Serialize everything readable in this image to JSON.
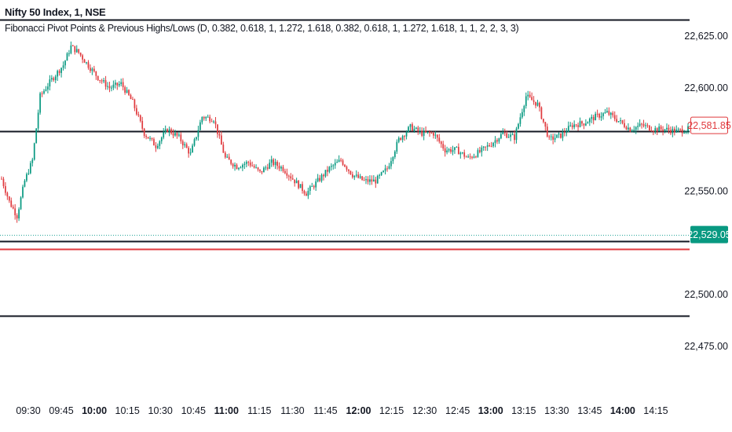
{
  "chart_data": {
    "type": "candlestick",
    "symbol_title": "Nifty 50 Index, 1, NSE",
    "indicator_title": "Fibonacci Pivot Points & Previous Highs/Lows (D, 0.382, 0.618, 1, 1.272, 1.618, 0.382, 0.618, 1, 1.272, 1.618, 1, 1, 2, 2, 3, 3)",
    "y_axis": {
      "ticks": [
        22625,
        22600,
        22550,
        22500,
        22475
      ],
      "tick_labels": [
        "22,625.00",
        "22,600.00",
        "22,550.00",
        "22,500.00",
        "22,475.00"
      ],
      "range": [
        22463,
        22634
      ]
    },
    "x_axis": {
      "ticks": [
        "09:30",
        "09:45",
        "10:00",
        "10:15",
        "10:30",
        "10:45",
        "11:00",
        "11:15",
        "11:30",
        "11:45",
        "12:00",
        "12:15",
        "12:30",
        "12:45",
        "13:00",
        "13:15",
        "13:30",
        "13:45",
        "14:00",
        "14:15"
      ],
      "bold_ticks": [
        "10:00",
        "11:00",
        "12:00",
        "13:00",
        "14:00"
      ]
    },
    "levels": [
      {
        "price": 22633,
        "color": "#131722",
        "style": "solid"
      },
      {
        "price": 22579,
        "color": "#131722",
        "style": "solid"
      },
      {
        "price": 22526,
        "color": "#131722",
        "style": "solid"
      },
      {
        "price": 22522,
        "color": "#e03a3e",
        "style": "solid"
      },
      {
        "price": 22490,
        "color": "#131722",
        "style": "solid"
      },
      {
        "price": 22529.05,
        "color": "#26a69a",
        "style": "dotted"
      }
    ],
    "price_labels": [
      {
        "text": "22,581.85",
        "price": 22581.85,
        "kind": "outline",
        "color": "#e03a3e"
      },
      {
        "text": "22,529.05",
        "price": 22529.05,
        "kind": "filled",
        "color": "#089981"
      }
    ],
    "path_anchors": [
      [
        0,
        22556
      ],
      [
        4,
        22545
      ],
      [
        8,
        22538
      ],
      [
        12,
        22555
      ],
      [
        16,
        22565
      ],
      [
        20,
        22596
      ],
      [
        26,
        22604
      ],
      [
        32,
        22611
      ],
      [
        36,
        22620
      ],
      [
        40,
        22617
      ],
      [
        44,
        22612
      ],
      [
        50,
        22605
      ],
      [
        56,
        22600
      ],
      [
        62,
        22602
      ],
      [
        68,
        22593
      ],
      [
        74,
        22578
      ],
      [
        80,
        22572
      ],
      [
        86,
        22580
      ],
      [
        92,
        22576
      ],
      [
        98,
        22568
      ],
      [
        104,
        22586
      ],
      [
        110,
        22585
      ],
      [
        116,
        22566
      ],
      [
        122,
        22562
      ],
      [
        128,
        22564
      ],
      [
        134,
        22559
      ],
      [
        140,
        22564
      ],
      [
        146,
        22561
      ],
      [
        152,
        22555
      ],
      [
        158,
        22549
      ],
      [
        164,
        22555
      ],
      [
        170,
        22561
      ],
      [
        176,
        22565
      ],
      [
        182,
        22558
      ],
      [
        188,
        22555
      ],
      [
        194,
        22555
      ],
      [
        200,
        22561
      ],
      [
        206,
        22575
      ],
      [
        212,
        22581
      ],
      [
        218,
        22578
      ],
      [
        224,
        22578
      ],
      [
        230,
        22570
      ],
      [
        236,
        22570
      ],
      [
        242,
        22566
      ],
      [
        248,
        22569
      ],
      [
        254,
        22573
      ],
      [
        260,
        22578
      ],
      [
        266,
        22576
      ],
      [
        272,
        22596
      ],
      [
        278,
        22592
      ],
      [
        284,
        22575
      ],
      [
        290,
        22577
      ],
      [
        296,
        22582
      ],
      [
        302,
        22583
      ],
      [
        308,
        22586
      ],
      [
        314,
        22588
      ],
      [
        320,
        22584
      ],
      [
        326,
        22580
      ],
      [
        332,
        22582
      ],
      [
        338,
        22580
      ],
      [
        344,
        22580
      ],
      [
        350,
        22579
      ],
      [
        356,
        22580
      ]
    ],
    "candle_colors": {
      "up": "#089981",
      "down": "#e03a3e"
    },
    "grid": false,
    "legend_position": "top-left"
  }
}
